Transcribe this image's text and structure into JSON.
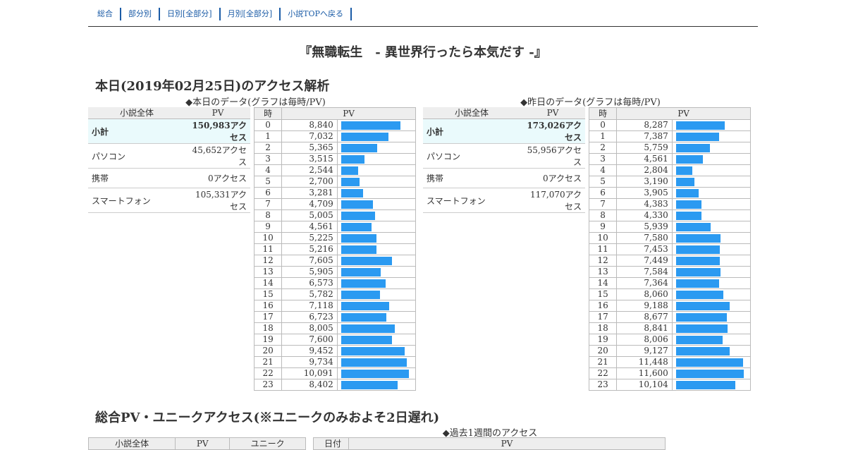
{
  "nav": [
    "総合",
    "部分別",
    "日別[全部分]",
    "月別[全部分]",
    "小説TOPへ戻る"
  ],
  "novel_title": "『無職転生　- 異世界行ったら本気だす -』",
  "today_heading": "本日(2019年02月25日)のアクセス解析",
  "today": {
    "caption": "◆本日のデータ(グラフは毎時/PV)",
    "col_label": "小説全体",
    "col_pv": "PV",
    "rows": [
      {
        "label": "小計",
        "value": "150,983アクセス"
      },
      {
        "label": "パソコン",
        "value": "45,652アクセス"
      },
      {
        "label": "携帯",
        "value": "0アクセス"
      },
      {
        "label": "スマートフォン",
        "value": "105,331アクセス"
      }
    ],
    "hour_head": "時",
    "pv_head": "PV",
    "hours": [
      "0",
      "1",
      "2",
      "3",
      "4",
      "5",
      "6",
      "7",
      "8",
      "9",
      "10",
      "11",
      "12",
      "13",
      "14",
      "15",
      "16",
      "17",
      "18",
      "19",
      "20",
      "21",
      "22",
      "23"
    ],
    "pv_text": [
      "8,840",
      "7,032",
      "5,365",
      "3,515",
      "2,544",
      "2,700",
      "3,281",
      "4,709",
      "5,005",
      "4,561",
      "5,225",
      "5,216",
      "7,605",
      "5,905",
      "6,573",
      "5,782",
      "7,118",
      "6,723",
      "8,005",
      "7,600",
      "9,452",
      "9,734",
      "10,091",
      "8,402"
    ],
    "pv_values": [
      8840,
      7032,
      5365,
      3515,
      2544,
      2700,
      3281,
      4709,
      5005,
      4561,
      5225,
      5216,
      7605,
      5905,
      6573,
      5782,
      7118,
      6723,
      8005,
      7600,
      9452,
      9734,
      10091,
      8402
    ]
  },
  "yesterday": {
    "caption": "◆昨日のデータ(グラフは毎時/PV)",
    "col_label": "小説全体",
    "col_pv": "PV",
    "rows": [
      {
        "label": "小計",
        "value": "173,026アクセス"
      },
      {
        "label": "パソコン",
        "value": "55,956アクセス"
      },
      {
        "label": "携帯",
        "value": "0アクセス"
      },
      {
        "label": "スマートフォン",
        "value": "117,070アクセス"
      }
    ],
    "hour_head": "時",
    "pv_head": "PV",
    "hours": [
      "0",
      "1",
      "2",
      "3",
      "4",
      "5",
      "6",
      "7",
      "8",
      "9",
      "10",
      "11",
      "12",
      "13",
      "14",
      "15",
      "16",
      "17",
      "18",
      "19",
      "20",
      "21",
      "22",
      "23"
    ],
    "pv_text": [
      "8,287",
      "7,387",
      "5,759",
      "4,561",
      "2,804",
      "3,190",
      "3,905",
      "4,383",
      "4,330",
      "5,939",
      "7,580",
      "7,453",
      "7,449",
      "7,584",
      "7,364",
      "8,060",
      "9,188",
      "8,677",
      "8,841",
      "8,006",
      "9,127",
      "11,448",
      "11,600",
      "10,104"
    ],
    "pv_values": [
      8287,
      7387,
      5759,
      4561,
      2804,
      3190,
      3905,
      4383,
      4330,
      5939,
      7580,
      7453,
      7449,
      7584,
      7364,
      8060,
      9188,
      8677,
      8841,
      8006,
      9127,
      11448,
      11600,
      10104
    ]
  },
  "total_heading": "総合PV・ユニークアクセス(※ユニークのみおよそ2日遅れ)",
  "total": {
    "col_label": "小説全体",
    "col_pv": "PV",
    "col_unique": "ユニーク"
  },
  "week": {
    "caption": "◆過去1週間のアクセス",
    "col_date": "日付",
    "col_pv": "PV"
  },
  "colors": {
    "bar": "#2b9af1",
    "link": "#1a5ba6",
    "subtotal_bg": "#eafafc",
    "header_bg": "#eeeeee"
  }
}
